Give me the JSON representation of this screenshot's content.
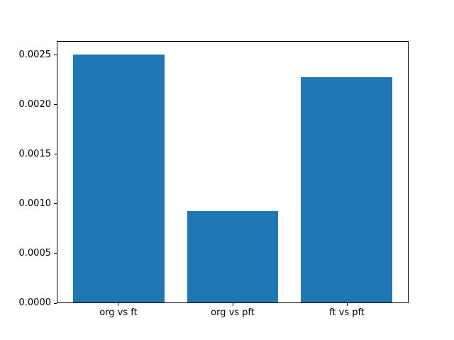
{
  "chart_data": {
    "type": "bar",
    "title": "",
    "xlabel": "",
    "ylabel": "",
    "categories": [
      "org vs ft",
      "org vs pft",
      "ft vs pft"
    ],
    "values": [
      0.002514,
      0.000924,
      0.002279
    ],
    "bar_color": "#1f77b4",
    "bar_width_units": 0.8,
    "xlim": [
      -0.54,
      2.54
    ],
    "ylim": [
      0,
      0.0026397
    ],
    "yticks": [
      0.0,
      0.0005,
      0.001,
      0.0015,
      0.002,
      0.0025
    ],
    "ytick_labels": [
      "0.0000",
      "0.0005",
      "0.0010",
      "0.0015",
      "0.0020",
      "0.0025"
    ],
    "grid": false,
    "legend": null,
    "spine_color": "#000000",
    "background_color": "#ffffff",
    "text_color": "#000000"
  }
}
